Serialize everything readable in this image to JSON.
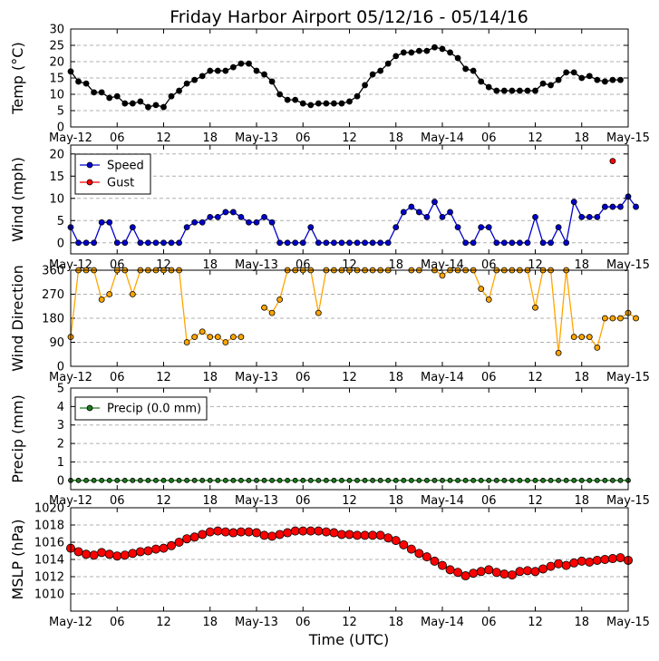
{
  "chart_data": [
    {
      "type": "line",
      "title": "Friday Harbor Airport 05/12/16 - 05/14/16",
      "ylabel": "Temp (°C)",
      "ylim": [
        0,
        30
      ],
      "yticks": [
        0,
        5,
        10,
        15,
        20,
        25,
        30
      ],
      "x_ticks": [
        "May-12",
        "06",
        "12",
        "18",
        "May-13",
        "06",
        "12",
        "18",
        "May-14",
        "06",
        "12",
        "18",
        "May-15"
      ],
      "grid": "horizontal dashed",
      "series": [
        {
          "values": [
            17,
            13.9,
            13.3,
            10.6,
            10.6,
            8.9,
            9.4,
            7.2,
            7.2,
            7.8,
            6.1,
            6.7,
            6.1,
            9.4,
            11.1,
            13.3,
            14.4,
            15.6,
            17.2,
            17.2,
            17.2,
            18.3,
            19.4,
            19.4,
            17.2,
            16.1,
            13.9,
            10,
            8.3,
            8.3,
            7.2,
            6.7,
            7.2,
            7.2,
            7.2,
            7.2,
            7.8,
            9.4,
            12.8,
            16.1,
            17.2,
            19.4,
            21.7,
            22.8,
            22.8,
            23.3,
            23.3,
            24.4,
            23.9,
            22.8,
            21.1,
            17.8,
            17.2,
            13.9,
            12.2,
            11.1,
            11.1,
            11.1,
            11.1,
            11.1,
            11.1,
            13.3,
            12.8,
            14.4,
            16.7,
            16.7,
            15,
            15.6,
            14.4,
            13.9,
            14.4,
            14.4
          ]
        }
      ]
    },
    {
      "type": "line",
      "ylabel": "Wind (mph)",
      "ylim": [
        -2.5,
        22
      ],
      "yticks": [
        0,
        5,
        10,
        15,
        20
      ],
      "x_ticks": [
        "May-12",
        "06",
        "12",
        "18",
        "May-13",
        "06",
        "12",
        "18",
        "May-14",
        "06",
        "12",
        "18",
        "May-15"
      ],
      "grid": "horizontal dashed",
      "legend": {
        "placement": "top-left",
        "entries": [
          "Speed",
          "Gust"
        ]
      },
      "series": [
        {
          "name": "Speed",
          "values": [
            3.5,
            0,
            0,
            0,
            4.6,
            4.6,
            0,
            0,
            3.5,
            0,
            0,
            0,
            0,
            0,
            0,
            3.5,
            4.6,
            4.6,
            5.8,
            5.8,
            6.9,
            6.9,
            5.8,
            4.6,
            4.6,
            5.8,
            4.6,
            0,
            0,
            0,
            0,
            3.5,
            0,
            0,
            0,
            0,
            0,
            0,
            0,
            0,
            0,
            0,
            3.5,
            6.9,
            8.1,
            6.9,
            5.8,
            9.2,
            5.8,
            6.9,
            3.5,
            0,
            0,
            3.5,
            3.5,
            0,
            0,
            0,
            0,
            0,
            5.8,
            0,
            0,
            3.5,
            0,
            9.2,
            5.8,
            5.8,
            5.8,
            8.1,
            8.1,
            8.1,
            10.4,
            8.1
          ]
        },
        {
          "name": "Gust",
          "points": [
            [
              70,
              18.4
            ]
          ]
        }
      ]
    },
    {
      "type": "scatter",
      "ylabel": "Wind Direction",
      "ylim": [
        0,
        360
      ],
      "yticks": [
        0,
        90,
        180,
        270,
        360
      ],
      "x_ticks": [
        "May-12",
        "06",
        "12",
        "18",
        "May-13",
        "06",
        "12",
        "18",
        "May-14",
        "06",
        "12",
        "18",
        "May-15"
      ],
      "grid": "horizontal dashed",
      "series": [
        {
          "values": [
            110,
            360,
            360,
            360,
            250,
            270,
            360,
            360,
            270,
            360,
            360,
            360,
            360,
            360,
            360,
            90,
            110,
            130,
            110,
            110,
            90,
            110,
            110,
            null,
            null,
            220,
            200,
            250,
            360,
            360,
            360,
            360,
            200,
            360,
            360,
            360,
            360,
            360,
            360,
            360,
            360,
            360,
            null,
            null,
            360,
            360,
            null,
            360,
            340,
            360,
            360,
            360,
            360,
            290,
            250,
            360,
            360,
            360,
            360,
            360,
            220,
            360,
            360,
            50,
            360,
            110,
            110,
            110,
            70,
            180,
            180,
            180,
            200,
            180
          ]
        }
      ]
    },
    {
      "type": "line",
      "ylabel": "Precip (mm)",
      "ylim": [
        -0.5,
        5
      ],
      "yticks": [
        0,
        1,
        2,
        3,
        4,
        5
      ],
      "x_ticks": [
        "May-12",
        "06",
        "12",
        "18",
        "May-13",
        "06",
        "12",
        "18",
        "May-14",
        "06",
        "12",
        "18",
        "May-15"
      ],
      "grid": "horizontal dashed",
      "legend": {
        "placement": "top-left",
        "entries": [
          "Precip (0.0 mm)"
        ]
      },
      "series": [
        {
          "name": "Precip (0.0 mm)",
          "constant_value": 0,
          "count": 73
        }
      ]
    },
    {
      "type": "line",
      "ylabel": "MSLP (hPa)",
      "xlabel": "Time (UTC)",
      "ylim": [
        1008,
        1020
      ],
      "yticks": [
        1010,
        1012,
        1014,
        1016,
        1018,
        1020
      ],
      "x_ticks": [
        "May-12",
        "06",
        "12",
        "18",
        "May-13",
        "06",
        "12",
        "18",
        "May-14",
        "06",
        "12",
        "18",
        "May-15"
      ],
      "grid": "horizontal dashed",
      "series": [
        {
          "values": [
            1015.3,
            1014.9,
            1014.6,
            1014.5,
            1014.8,
            1014.6,
            1014.4,
            1014.5,
            1014.7,
            1014.9,
            1015.0,
            1015.2,
            1015.3,
            1015.6,
            1016.0,
            1016.4,
            1016.6,
            1016.9,
            1017.2,
            1017.3,
            1017.2,
            1017.1,
            1017.2,
            1017.2,
            1017.1,
            1016.8,
            1016.7,
            1016.9,
            1017.1,
            1017.3,
            1017.3,
            1017.3,
            1017.3,
            1017.2,
            1017.1,
            1016.9,
            1016.9,
            1016.8,
            1016.8,
            1016.8,
            1016.8,
            1016.5,
            1016.2,
            1015.7,
            1015.2,
            1014.7,
            1014.3,
            1013.8,
            1013.3,
            1012.8,
            1012.5,
            1012.1,
            1012.4,
            1012.6,
            1012.8,
            1012.5,
            1012.3,
            1012.2,
            1012.6,
            1012.7,
            1012.6,
            1012.9,
            1013.2,
            1013.5,
            1013.3,
            1013.6,
            1013.8,
            1013.7,
            1013.9,
            1014.0,
            1014.1,
            1014.2,
            1013.9
          ]
        }
      ]
    }
  ],
  "colors": {
    "temp": "#000000",
    "speed": "#0000cc",
    "gust": "#ff0000",
    "direction": "#ffa500",
    "precip": "#1e7a1e",
    "mslp": "#ff0000",
    "grid": "#b0b0b0"
  }
}
